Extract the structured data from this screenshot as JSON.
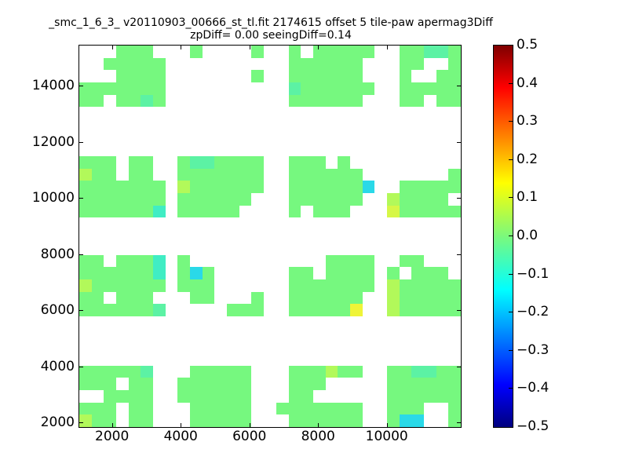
{
  "figure": {
    "title": "_smc_1_6_3_ v20110903_00666_st_tl.fit 2174615 offset 5 tile-paw apermag3Diff",
    "subtitle": "zpDiff= 0.00 seeingDiff=0.14",
    "background": "#ffffff"
  },
  "chart_data": {
    "type": "heatmap",
    "title": "_smc_1_6_3_ v20110903_00666_st_tl.fit 2174615 offset 5 tile-paw apermag3Diff",
    "subtitle": "zpDiff= 0.00 seeingDiff=0.14",
    "xlabel": "",
    "ylabel": "",
    "x_ticks": [
      2000,
      4000,
      6000,
      8000,
      10000
    ],
    "y_ticks": [
      2000,
      4000,
      6000,
      8000,
      10000,
      12000,
      14000
    ],
    "x_range": [
      1024,
      12132
    ],
    "y_range": [
      1860,
      15464
    ],
    "grid_on": false,
    "grid_size": {
      "cols": 31,
      "rows": 31
    },
    "cell_value_legend": {
      ".": null,
      "a": 0.01,
      "b": 0.04,
      "c": -0.04,
      "d": -0.08,
      "e": -0.12,
      "f": 0.08,
      "g": 0.12,
      "h": 0.17
    },
    "cell_colors": {
      "a": "#76f87f",
      "b": "#8df96c",
      "c": "#5cf2a4",
      "d": "#40edc4",
      "e": "#2ad9e8",
      "f": "#b2f95a",
      "g": "#d6f747",
      "h": "#eff438"
    },
    "grid_rows": [
      "...aaa...a....a..a.aaaaa..aacca",
      "..aaaaa..........aaaaaa...aa..a",
      "...aaaa.......a..aaaaaa...a..aa",
      "aaaaaaa..........caaaaaa..aaaaa",
      "aa.aaca..........aaaaaa...aa.aa",
      "...............................",
      "...............................",
      "...............................",
      "...............................",
      "aaa.aa..accaaaa..aaa.a.........",
      "faa.aa..aaaaaaa..aaaaaa.......a",
      "aaaaaaa.faaaaaa..aaaaaae..aaaaa",
      "aaaaaaa.aaaaaa...aaaaaa..faaaa.",
      "aaaaaad.aaaaa....a.aaa...gaaaaa",
      "...............................",
      "...............................",
      "...............................",
      "aa.aaad.a...........aaaa..aa...",
      "aaaaaad.aea......aa.aaaa.a.aaa.",
      "faaaaaa.aaa......aaaaaaa.faaaaa",
      "aa.aaa...aa...a..aaaaaa..faaaaa",
      "aaaaaac.....aaa..aaaaah..faaaaa",
      "...............................",
      "...............................",
      "...............................",
      "...............................",
      "aaaaac...aaaaa...aaafaa..aaccaa",
      "aaa.aa..aaaaaa...aaa.....aaaaaa",
      "..aaaa..aaaaaa...aa......aaaaaa",
      "aaa.aa...aaaaa..aaaaaaa..aaa..a",
      "faa.aa...aaaaa...aaaaaa..aee..a"
    ],
    "colorbar": {
      "cmap": "jet",
      "range": [
        -0.5,
        0.5
      ],
      "tick_values": [
        0.5,
        0.4,
        0.3,
        0.2,
        0.1,
        0.0,
        -0.1,
        -0.2,
        -0.3,
        -0.4,
        -0.5
      ],
      "tick_labels": [
        "0.5",
        "0.4",
        "0.3",
        "0.2",
        "0.1",
        "0.0",
        "−0.1",
        "−0.2",
        "−0.3",
        "−0.4",
        "−0.5"
      ],
      "gradient_stops": [
        {
          "pos": 0.0,
          "color": "#00007f"
        },
        {
          "pos": 0.11,
          "color": "#0000ff"
        },
        {
          "pos": 0.36,
          "color": "#00ffff"
        },
        {
          "pos": 0.5,
          "color": "#7bf97c"
        },
        {
          "pos": 0.64,
          "color": "#ffff00"
        },
        {
          "pos": 0.89,
          "color": "#ff0000"
        },
        {
          "pos": 1.0,
          "color": "#7f0000"
        }
      ],
      "legend_position": "right"
    }
  }
}
